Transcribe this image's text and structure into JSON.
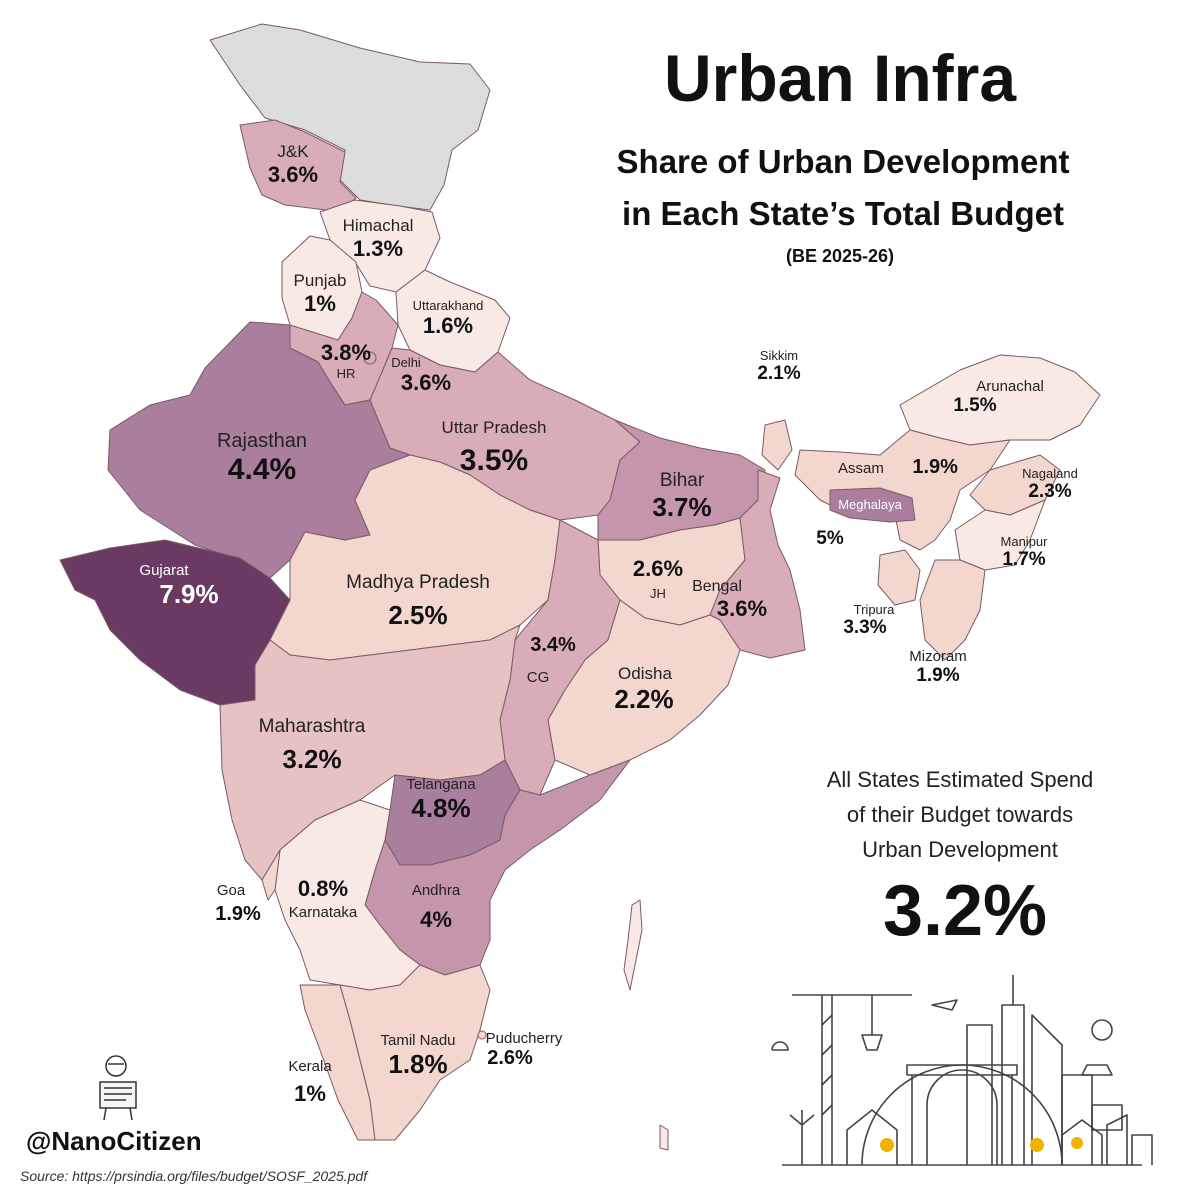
{
  "title": "Urban Infra",
  "subtitle_line1": "Share of Urban Development",
  "subtitle_line2": "in Each State’s Total Budget",
  "period": "(BE 2025-26)",
  "states": {
    "jk": {
      "name": "J&K",
      "value": "3.6%"
    },
    "himachal": {
      "name": "Himachal",
      "value": "1.3%"
    },
    "punjab": {
      "name": "Punjab",
      "value": "1%"
    },
    "uttarakhand": {
      "name": "Uttarakhand",
      "value": "1.6%"
    },
    "haryana": {
      "name": "HR",
      "value": "3.8%"
    },
    "delhi": {
      "name": "Delhi",
      "value": "3.6%"
    },
    "rajasthan": {
      "name": "Rajasthan",
      "value": "4.4%"
    },
    "uttar_pradesh": {
      "name": "Uttar Pradesh",
      "value": "3.5%"
    },
    "bihar": {
      "name": "Bihar",
      "value": "3.7%"
    },
    "sikkim": {
      "name": "Sikkim",
      "value": "2.1%"
    },
    "arunachal": {
      "name": "Arunachal",
      "value": "1.5%"
    },
    "assam": {
      "name": "Assam",
      "value": "1.9%"
    },
    "nagaland": {
      "name": "Nagaland",
      "value": "2.3%"
    },
    "meghalaya": {
      "name": "Meghalaya",
      "value": "5%"
    },
    "manipur": {
      "name": "Manipur",
      "value": "1.7%"
    },
    "tripura": {
      "name": "Tripura",
      "value": "3.3%"
    },
    "mizoram": {
      "name": "Mizoram",
      "value": "1.9%"
    },
    "gujarat": {
      "name": "Gujarat",
      "value": "7.9%"
    },
    "madhya_pradesh": {
      "name": "Madhya Pradesh",
      "value": "2.5%"
    },
    "jharkhand": {
      "name": "JH",
      "value": "2.6%"
    },
    "bengal": {
      "name": "Bengal",
      "value": "3.6%"
    },
    "chhattisgarh": {
      "name": "CG",
      "value": "3.4%"
    },
    "odisha": {
      "name": "Odisha",
      "value": "2.2%"
    },
    "maharashtra": {
      "name": "Maharashtra",
      "value": "3.2%"
    },
    "telangana": {
      "name": "Telangana",
      "value": "4.8%"
    },
    "goa": {
      "name": "Goa",
      "value": "1.9%"
    },
    "karnataka": {
      "name": "Karnataka",
      "value": "0.8%"
    },
    "andhra": {
      "name": "Andhra",
      "value": "4%"
    },
    "kerala": {
      "name": "Kerala",
      "value": "1%"
    },
    "tamil_nadu": {
      "name": "Tamil Nadu",
      "value": "1.8%"
    },
    "puducherry": {
      "name": "Puducherry",
      "value": "2.6%"
    }
  },
  "summary_line1": "All States Estimated Spend",
  "summary_line2": "of their Budget towards",
  "summary_line3": "Urban Development",
  "summary_value": "3.2%",
  "handle": "@NanoCitizen",
  "source": "Source: https://prsindia.org/files/budget/SOSF_2025.pdf",
  "colors": {
    "no_data": "#dcdcdc",
    "scale_1": "#f8e9e4",
    "scale_2": "#f3d6cd",
    "scale_3": "#e6c2c2",
    "scale_4": "#d8adb7",
    "scale_5": "#c595ac",
    "scale_6": "#a97f9d",
    "scale_max": "#6b3a62"
  }
}
